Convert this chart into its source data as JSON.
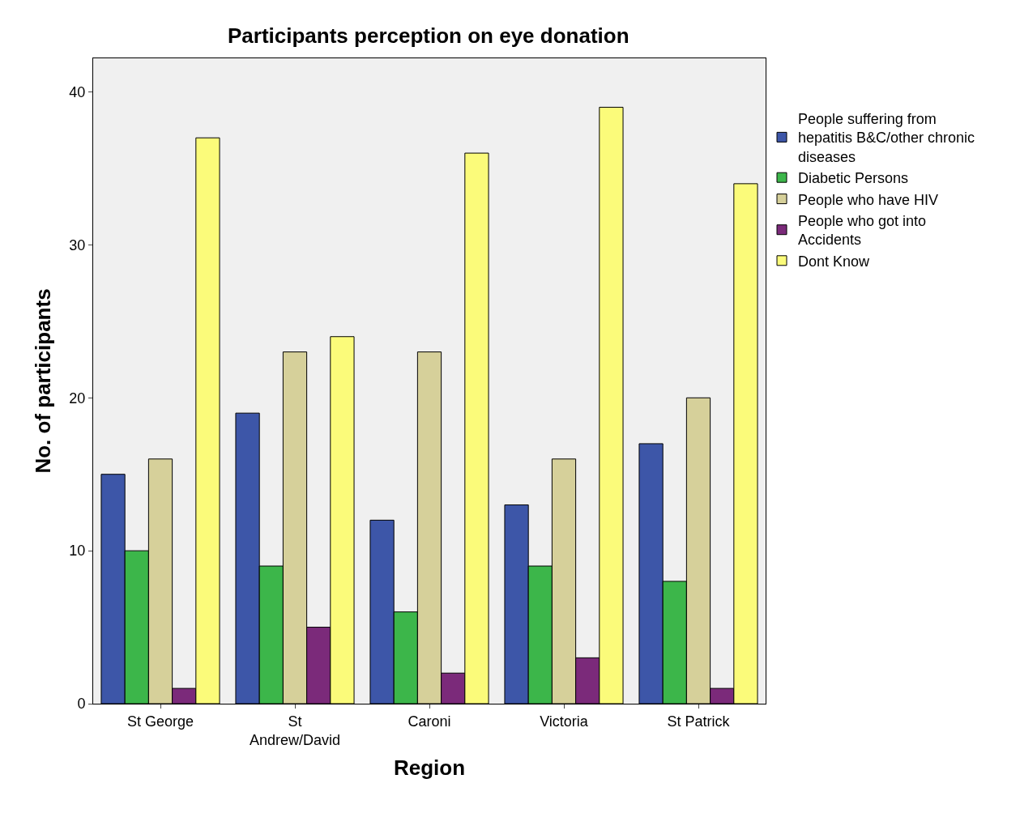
{
  "chart_data": {
    "type": "bar",
    "title": "Participants perception on eye donation",
    "xlabel": "Region",
    "ylabel": "No. of participants",
    "categories": [
      "St George",
      "St\nAndrew/David",
      "Caroni",
      "Victoria",
      "St Patrick"
    ],
    "series": [
      {
        "name": "People suffering from\nhepatitis B&C/other chronic\ndiseases",
        "color": "#3d56a8",
        "values": [
          15,
          19,
          12,
          13,
          17
        ]
      },
      {
        "name": "Diabetic Persons",
        "color": "#3cb64a",
        "values": [
          10,
          9,
          6,
          9,
          8
        ]
      },
      {
        "name": "People who have HIV",
        "color": "#d6d09a",
        "values": [
          16,
          23,
          23,
          16,
          20
        ]
      },
      {
        "name": "People who got into\nAccidents",
        "color": "#7b2a7a",
        "values": [
          1,
          5,
          2,
          3,
          1
        ]
      },
      {
        "name": "Dont Know",
        "color": "#fbfb7a",
        "values": [
          37,
          24,
          36,
          39,
          34
        ]
      }
    ],
    "ylim": [
      0,
      42.2
    ],
    "yticks": [
      0,
      10,
      20,
      30,
      40
    ],
    "grid": false,
    "legend": "top right"
  }
}
